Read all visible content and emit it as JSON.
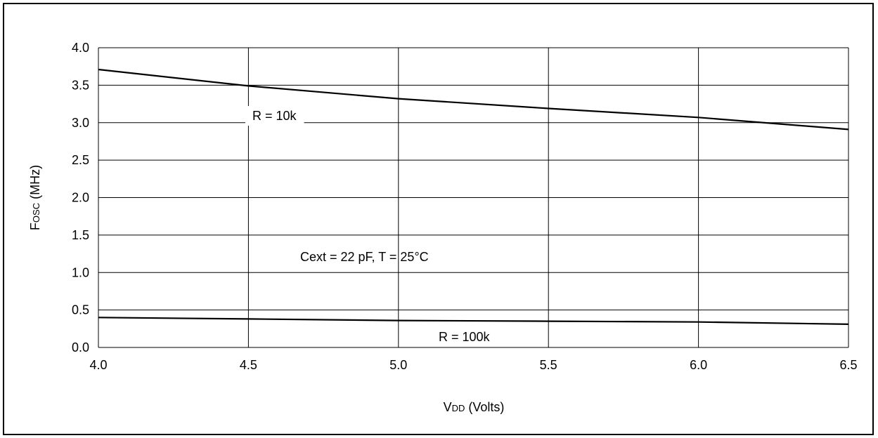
{
  "chart_data": {
    "type": "line",
    "xlabel": {
      "main": "V",
      "sub": "DD",
      "rest": " (Volts)"
    },
    "ylabel": {
      "main": "F",
      "sub": "OSC",
      "rest": " (MHz)"
    },
    "xlim": [
      4.0,
      6.5
    ],
    "ylim": [
      0.0,
      4.0
    ],
    "x_ticks": [
      4.0,
      4.5,
      5.0,
      5.5,
      6.0,
      6.5
    ],
    "x_tick_labels": [
      "4.0",
      "4.5",
      "5.0",
      "5.5",
      "6.0",
      "6.5"
    ],
    "y_ticks": [
      0.0,
      0.5,
      1.0,
      1.5,
      2.0,
      2.5,
      3.0,
      3.5,
      4.0
    ],
    "y_tick_labels": [
      "0.0",
      "0.5",
      "1.0",
      "1.5",
      "2.0",
      "2.5",
      "3.0",
      "3.5",
      "4.0"
    ],
    "grid": true,
    "annotation": "Cext = 22 pF, T = 25°C",
    "series": [
      {
        "name": "R = 10k",
        "x": [
          4.0,
          4.5,
          5.0,
          5.5,
          6.0,
          6.5
        ],
        "values": [
          3.71,
          3.49,
          3.32,
          3.19,
          3.07,
          2.91
        ]
      },
      {
        "name": "R = 100k",
        "x": [
          4.0,
          4.5,
          5.0,
          5.5,
          6.0,
          6.5
        ],
        "values": [
          0.4,
          0.38,
          0.36,
          0.35,
          0.34,
          0.31
        ]
      }
    ]
  }
}
